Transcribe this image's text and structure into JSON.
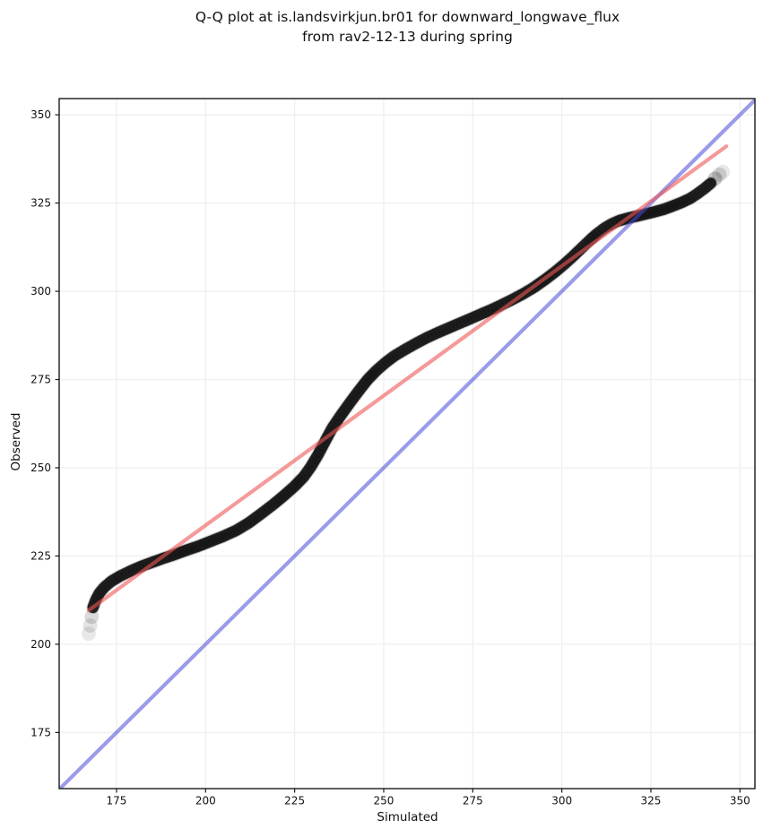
{
  "title": {
    "line1": "Q-Q plot at is.landsvirkjun.br01 for downward_longwave_flux",
    "line2": "from rav2-12-13 during spring"
  },
  "chart_data": {
    "type": "scatter",
    "title": "Q-Q plot at is.landsvirkjun.br01 for downward_longwave_flux from rav2-12-13 during spring",
    "xlabel": "Simulated",
    "ylabel": "Observed",
    "xlim": [
      158.9,
      354.2
    ],
    "ylim": [
      159.1,
      354.6
    ],
    "x_ticks": [
      175,
      200,
      225,
      250,
      275,
      300,
      325,
      350
    ],
    "y_ticks": [
      175,
      200,
      225,
      250,
      275,
      300,
      325,
      350
    ],
    "grid": true,
    "grid_color": "#f0f0f0",
    "marker_color": "#000000",
    "identity_line": {
      "desc": "y = x reference line",
      "color": "#4848d8",
      "opacity": 0.55,
      "x1": 158.9,
      "y1": 158.9,
      "x2": 354.6,
      "y2": 354.6
    },
    "fit_line": {
      "desc": "fitted line",
      "color": "#ee5555",
      "opacity": 0.6,
      "x1": 167.2,
      "y1": 209.6,
      "x2": 346.2,
      "y2": 341.1
    },
    "points": [
      [
        168.4,
        210.4
      ],
      [
        169.2,
        212.6
      ],
      [
        170.2,
        214.5
      ],
      [
        171.6,
        216.2
      ],
      [
        173.5,
        217.8
      ],
      [
        176,
        219.3
      ],
      [
        179,
        220.8
      ],
      [
        182,
        222.1
      ],
      [
        185,
        223.2
      ],
      [
        188,
        224.3
      ],
      [
        191,
        225.3
      ],
      [
        194.5,
        226.6
      ],
      [
        198,
        227.8
      ],
      [
        201.5,
        229.2
      ],
      [
        205,
        230.6
      ],
      [
        208.5,
        232.2
      ],
      [
        212,
        234.3
      ],
      [
        215.5,
        236.9
      ],
      [
        219,
        239.6
      ],
      [
        222,
        242.1
      ],
      [
        225,
        244.8
      ],
      [
        227.5,
        247.4
      ],
      [
        229.5,
        250.2
      ],
      [
        231.5,
        253.6
      ],
      [
        233.5,
        257.4
      ],
      [
        235.5,
        261.2
      ],
      [
        238,
        264.9
      ],
      [
        240.5,
        268.4
      ],
      [
        243,
        271.8
      ],
      [
        245.5,
        275.0
      ],
      [
        248,
        277.6
      ],
      [
        250.5,
        279.8
      ],
      [
        253,
        281.7
      ],
      [
        256,
        283.5
      ],
      [
        259,
        285.2
      ],
      [
        262,
        286.8
      ],
      [
        265,
        288.2
      ],
      [
        268,
        289.5
      ],
      [
        271,
        290.8
      ],
      [
        274,
        292.1
      ],
      [
        277,
        293.4
      ],
      [
        280,
        294.7
      ],
      [
        283,
        296.1
      ],
      [
        286,
        297.6
      ],
      [
        289,
        299.2
      ],
      [
        292,
        301.0
      ],
      [
        295,
        303.1
      ],
      [
        298,
        305.4
      ],
      [
        300.5,
        307.5
      ],
      [
        303,
        309.8
      ],
      [
        305.5,
        312.2
      ],
      [
        308,
        314.6
      ],
      [
        310,
        316.4
      ],
      [
        312,
        317.9
      ],
      [
        314,
        319.1
      ],
      [
        316,
        320.0
      ],
      [
        318.5,
        320.7
      ],
      [
        321,
        321.3
      ],
      [
        323.5,
        321.9
      ],
      [
        326,
        322.5
      ],
      [
        328.5,
        323.2
      ],
      [
        331,
        324.1
      ],
      [
        333.5,
        325.1
      ],
      [
        336,
        326.3
      ],
      [
        338,
        327.6
      ],
      [
        340,
        329.1
      ],
      [
        341.8,
        330.6
      ]
    ],
    "faint_points": [
      [
        167.2,
        203.0,
        0.09
      ],
      [
        167.6,
        205.3,
        0.11
      ],
      [
        168.0,
        207.8,
        0.14
      ],
      [
        343.0,
        331.9,
        0.22
      ],
      [
        344.2,
        333.1,
        0.14
      ],
      [
        345.2,
        333.8,
        0.09
      ]
    ]
  }
}
